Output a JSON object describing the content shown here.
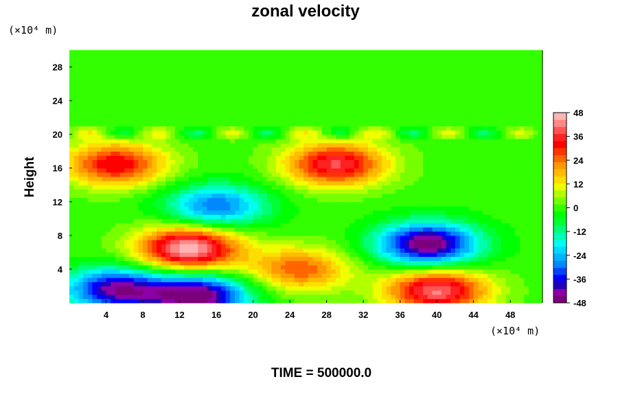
{
  "chart_data": {
    "type": "heatmap",
    "title": "zonal velocity",
    "ylabel": "Height",
    "x_unit": "(×10⁴ m)",
    "y_unit": "(×10⁴ m)",
    "xlim": [
      0,
      51.5
    ],
    "ylim": [
      0,
      30
    ],
    "x_ticks": [
      4,
      8,
      12,
      16,
      20,
      24,
      28,
      32,
      36,
      40,
      44,
      48
    ],
    "y_ticks": [
      4,
      8,
      12,
      16,
      20,
      24,
      28
    ],
    "colorbar": {
      "range": [
        -48,
        48
      ],
      "ticks": [
        48,
        36,
        24,
        12,
        0,
        -12,
        -24,
        -36,
        -48
      ],
      "levels": [
        "#7b007b",
        "#8c00a6",
        "#2200b8",
        "#0000ff",
        "#0044ff",
        "#0088ff",
        "#00b2ff",
        "#00d9ff",
        "#00ffee",
        "#00ffb2",
        "#00ff77",
        "#00ff33",
        "#00ff00",
        "#33ff00",
        "#77ff00",
        "#b2ff00",
        "#eeff00",
        "#ffdd00",
        "#ffbb00",
        "#ff9900",
        "#ff6600",
        "#ff3300",
        "#ff0000",
        "#ff2222",
        "#ff5555",
        "#ff8888",
        "#ffb4b4"
      ]
    },
    "features": [
      {
        "x": 13,
        "y": 6.5,
        "v": 48
      },
      {
        "x": 39,
        "y": 7,
        "v": -48
      },
      {
        "x": 14,
        "y": 0.8,
        "v": -48
      },
      {
        "x": 5,
        "y": 1.6,
        "v": -42
      },
      {
        "x": 40,
        "y": 1.5,
        "v": 42
      },
      {
        "x": 29,
        "y": 16.5,
        "v": 38
      },
      {
        "x": 5,
        "y": 16.5,
        "v": 34
      },
      {
        "x": 16,
        "y": 11.5,
        "v": -30
      },
      {
        "x": 25,
        "y": 4,
        "v": 26
      }
    ]
  },
  "caption": "TIME = 500000.0"
}
